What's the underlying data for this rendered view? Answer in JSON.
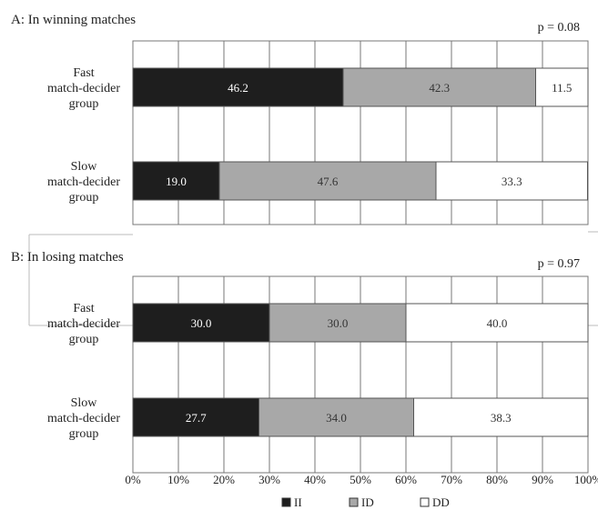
{
  "chart_data": [
    {
      "type": "bar",
      "orientation": "horizontal",
      "stacked": true,
      "panel_label": "A: In winning matches",
      "p_value": "p = 0.08",
      "categories": [
        [
          "Fast",
          "match-decider",
          "group"
        ],
        [
          "Slow",
          "match-decider",
          "group"
        ]
      ],
      "series": [
        {
          "name": "II",
          "values": [
            46.2,
            19.0
          ],
          "labels": [
            "46.2",
            "19.0"
          ]
        },
        {
          "name": "ID",
          "values": [
            42.3,
            47.6
          ],
          "labels": [
            "42.3",
            "47.6"
          ]
        },
        {
          "name": "DD",
          "values": [
            11.5,
            33.3
          ],
          "labels": [
            "11.5",
            "33.3"
          ]
        }
      ],
      "xlim": [
        0,
        100
      ],
      "grid": true
    },
    {
      "type": "bar",
      "orientation": "horizontal",
      "stacked": true,
      "panel_label": "B: In losing matches",
      "p_value": "p = 0.97",
      "categories": [
        [
          "Fast",
          "match-decider",
          "group"
        ],
        [
          "Slow",
          "match-decider",
          "group"
        ]
      ],
      "series": [
        {
          "name": "II",
          "values": [
            30.0,
            27.7
          ],
          "labels": [
            "30.0",
            "27.7"
          ]
        },
        {
          "name": "ID",
          "values": [
            30.0,
            34.0
          ],
          "labels": [
            "30.0",
            "34.0"
          ]
        },
        {
          "name": "DD",
          "values": [
            40.0,
            38.3
          ],
          "labels": [
            "40.0",
            "38.3"
          ]
        }
      ],
      "xlim": [
        0,
        100
      ],
      "grid": true
    }
  ],
  "x_ticks": [
    "0%",
    "10%",
    "20%",
    "30%",
    "40%",
    "50%",
    "60%",
    "70%",
    "80%",
    "90%",
    "100%"
  ],
  "legend": [
    {
      "name": "II",
      "color": "#1e1e1e"
    },
    {
      "name": "ID",
      "color": "#a8a8a8"
    },
    {
      "name": "DD",
      "color": "#ffffff"
    }
  ],
  "colors": {
    "II": "#1e1e1e",
    "ID": "#a8a8a8",
    "DD": "#ffffff",
    "grid": "#777777"
  }
}
